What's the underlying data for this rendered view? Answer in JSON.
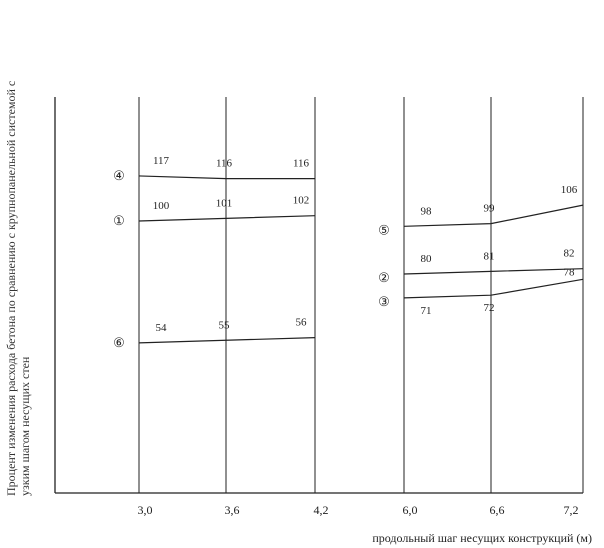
{
  "chart_data": {
    "type": "line",
    "xlabel": "продольный шаг несущих конструкций (м)",
    "ylabel_lines": [
      "Процент изменения расхода бетона по сравнению с крупнопанельной системой с",
      "узким шагом несущих стен"
    ],
    "categories": [
      "3,0",
      "3,6",
      "4,2",
      "6,0",
      "6,6",
      "7,2"
    ],
    "grid": "vertical lines at each category",
    "series": [
      {
        "name": "④",
        "x": [
          "3,0",
          "3,6",
          "4,2"
        ],
        "values": [
          117,
          116,
          116
        ]
      },
      {
        "name": "①",
        "x": [
          "3,0",
          "3,6",
          "4,2"
        ],
        "values": [
          100,
          101,
          102
        ]
      },
      {
        "name": "⑥",
        "x": [
          "3,0",
          "3,6",
          "4,2"
        ],
        "values": [
          54,
          55,
          56
        ]
      },
      {
        "name": "⑤",
        "x": [
          "6,0",
          "6,6",
          "7,2"
        ],
        "values": [
          98,
          99,
          106
        ]
      },
      {
        "name": "②",
        "x": [
          "6,0",
          "6,6",
          "7,2"
        ],
        "values": [
          80,
          81,
          82
        ]
      },
      {
        "name": "③",
        "x": [
          "6,0",
          "6,6",
          "7,2"
        ],
        "values": [
          71,
          72,
          78
        ]
      }
    ],
    "colors": {
      "line": "#222222",
      "background": "#ffffff"
    }
  }
}
